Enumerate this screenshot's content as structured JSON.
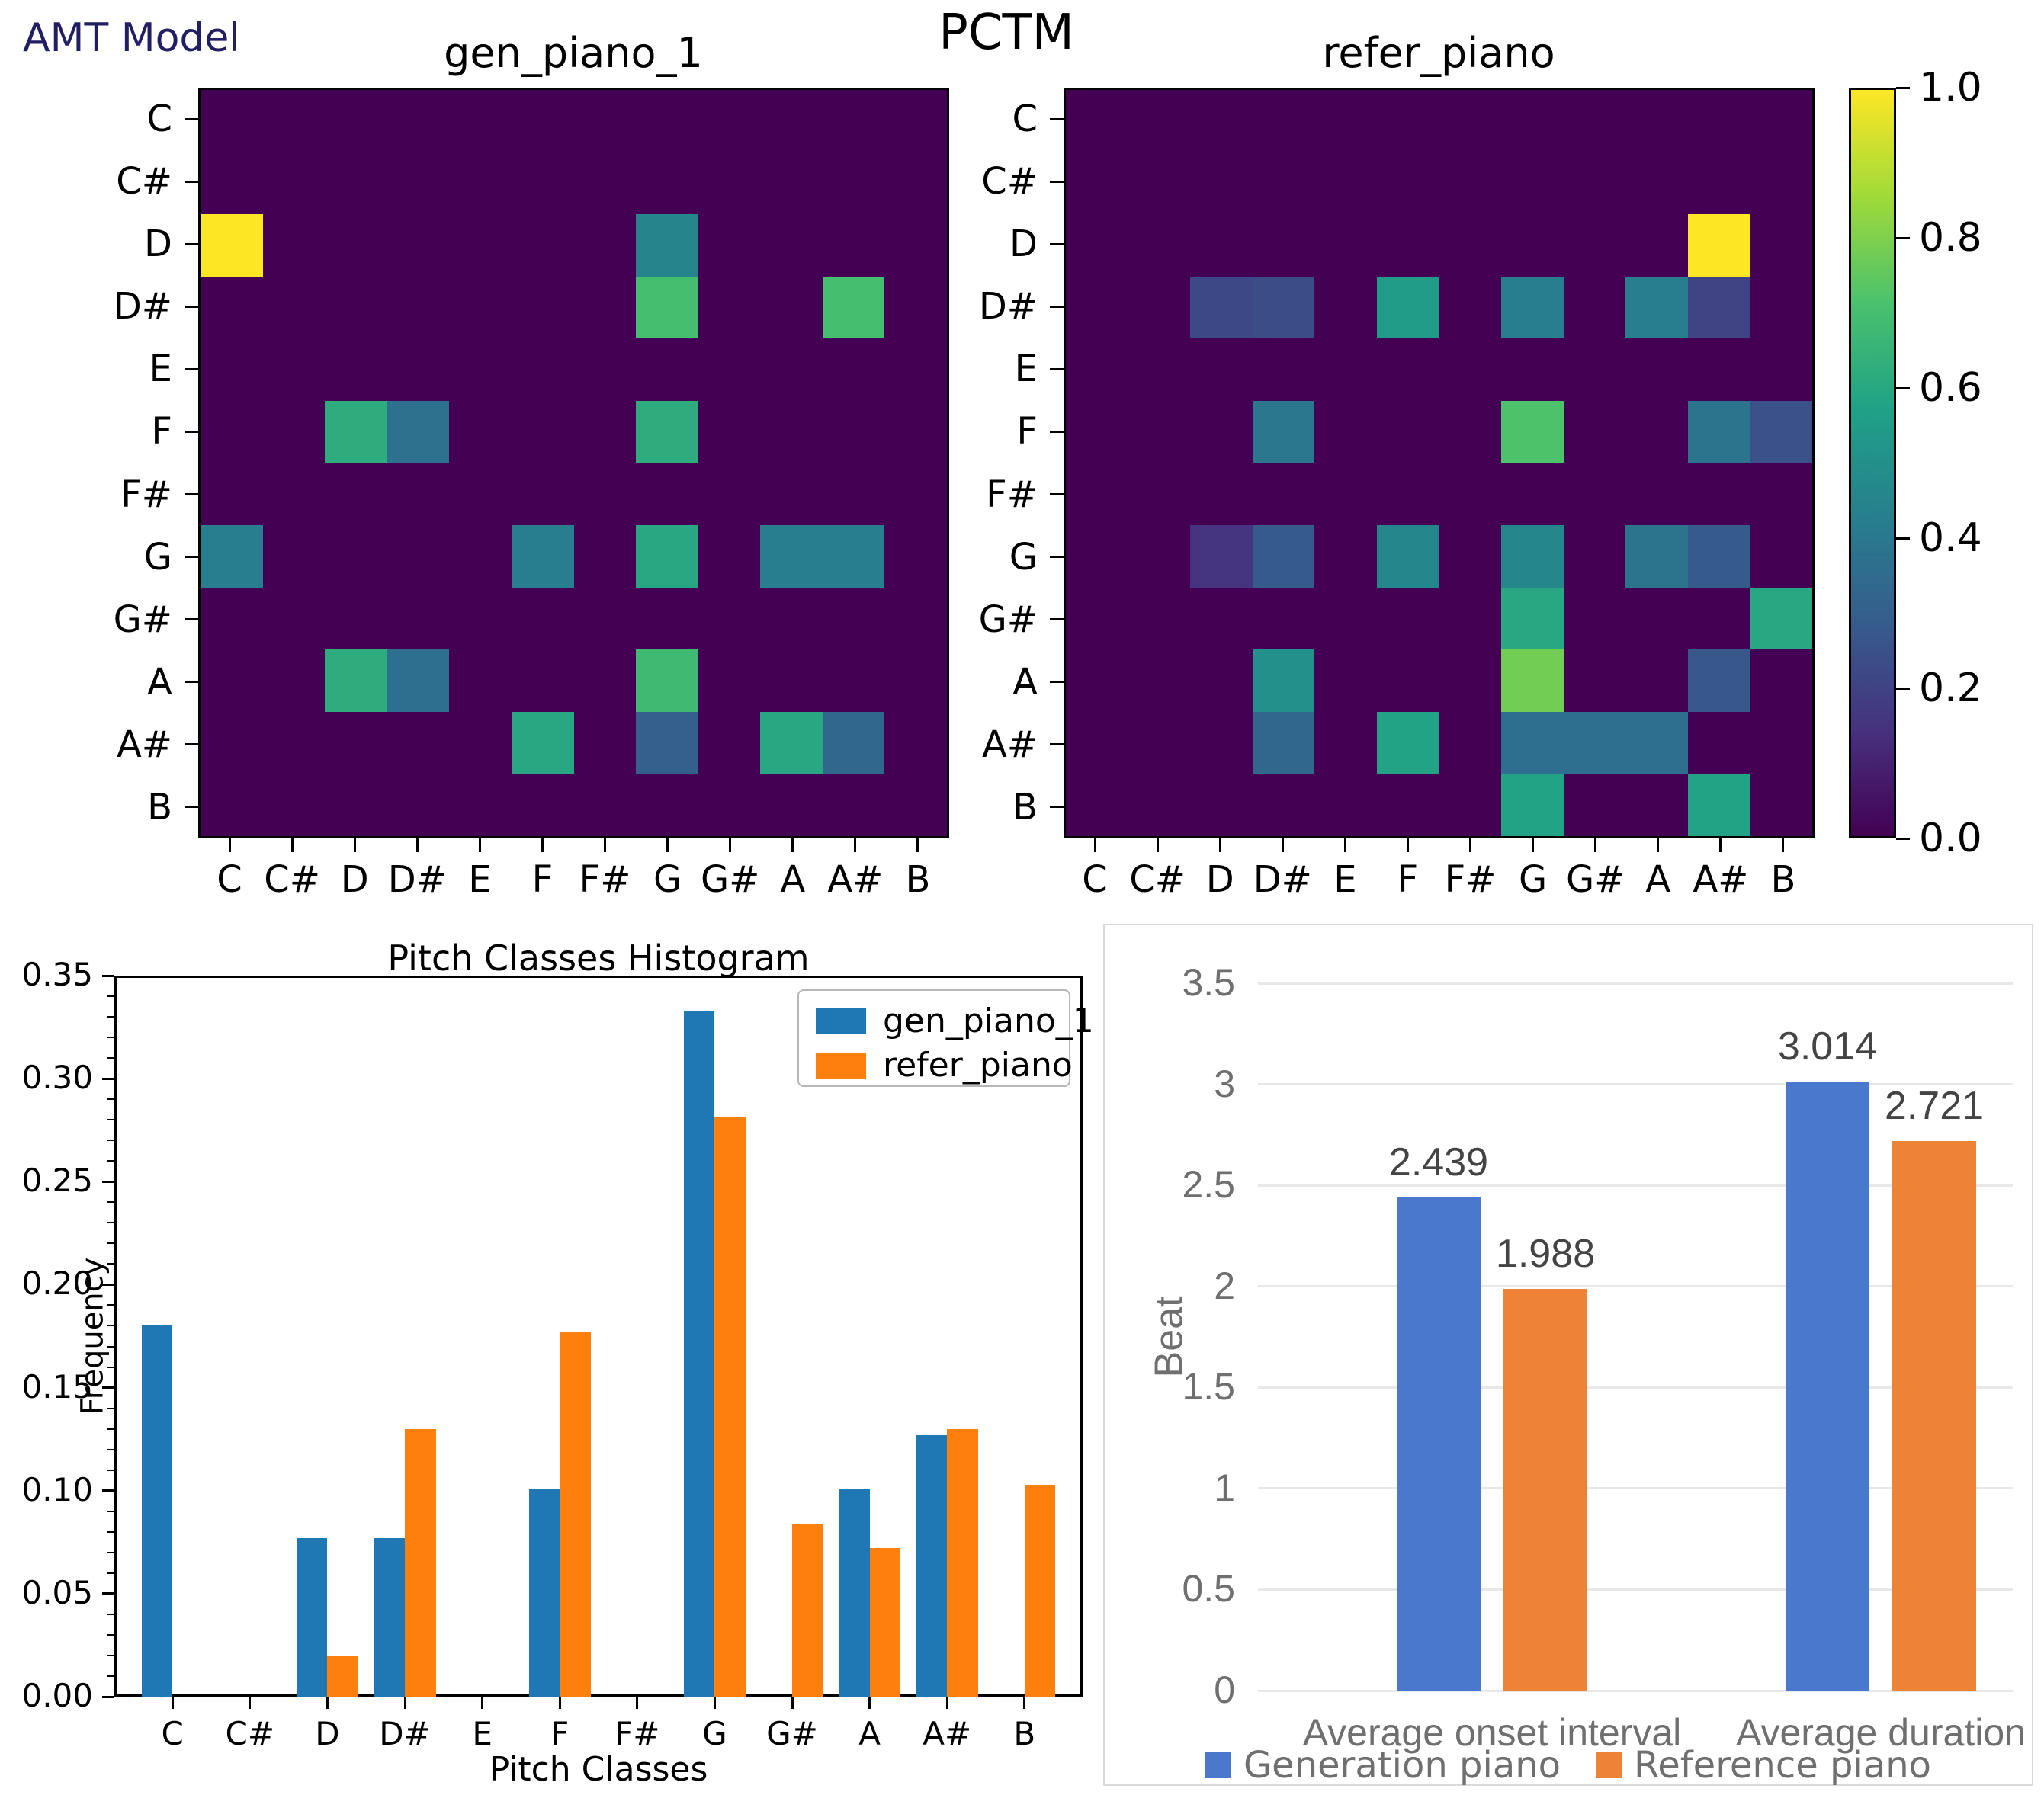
{
  "page": {
    "amt_model_label": "AMT Model",
    "suptitle": "PCTM"
  },
  "colorbar": {
    "colormap": "viridis",
    "ticks": [
      "1.0",
      "0.8",
      "0.6",
      "0.4",
      "0.2",
      "0.0"
    ]
  },
  "chart_data": [
    {
      "id": "pctm_gen",
      "type": "heatmap",
      "title": "gen_piano_1",
      "colormap": "viridis",
      "vmin": 0.0,
      "vmax": 1.0,
      "x_categories": [
        "C",
        "C#",
        "D",
        "D#",
        "E",
        "F",
        "F#",
        "G",
        "G#",
        "A",
        "A#",
        "B"
      ],
      "y_categories": [
        "C",
        "C#",
        "D",
        "D#",
        "E",
        "F",
        "F#",
        "G",
        "G#",
        "A",
        "A#",
        "B"
      ],
      "values": [
        [
          0,
          0,
          0,
          0,
          0,
          0,
          0,
          0,
          0,
          0,
          0,
          0
        ],
        [
          0,
          0,
          0,
          0,
          0,
          0,
          0,
          0,
          0,
          0,
          0,
          0
        ],
        [
          1.0,
          0,
          0,
          0,
          0,
          0,
          0,
          0.45,
          0,
          0,
          0,
          0
        ],
        [
          0,
          0,
          0,
          0,
          0,
          0,
          0,
          0.7,
          0,
          0,
          0.7,
          0
        ],
        [
          0,
          0,
          0,
          0,
          0,
          0,
          0,
          0,
          0,
          0,
          0,
          0
        ],
        [
          0,
          0,
          0.62,
          0.37,
          0,
          0,
          0,
          0.62,
          0,
          0,
          0,
          0
        ],
        [
          0,
          0,
          0,
          0,
          0,
          0,
          0,
          0,
          0,
          0,
          0,
          0
        ],
        [
          0.42,
          0,
          0,
          0,
          0,
          0.42,
          0,
          0.6,
          0,
          0.42,
          0.42,
          0
        ],
        [
          0,
          0,
          0,
          0,
          0,
          0,
          0,
          0,
          0,
          0,
          0,
          0
        ],
        [
          0,
          0,
          0.62,
          0.36,
          0,
          0,
          0,
          0.68,
          0,
          0,
          0,
          0
        ],
        [
          0,
          0,
          0,
          0,
          0,
          0.6,
          0,
          0.3,
          0,
          0.6,
          0.33,
          0
        ],
        [
          0,
          0,
          0,
          0,
          0,
          0,
          0,
          0,
          0,
          0,
          0,
          0
        ]
      ]
    },
    {
      "id": "pctm_refer",
      "type": "heatmap",
      "title": "refer_piano",
      "colormap": "viridis",
      "vmin": 0.0,
      "vmax": 1.0,
      "x_categories": [
        "C",
        "C#",
        "D",
        "D#",
        "E",
        "F",
        "F#",
        "G",
        "G#",
        "A",
        "A#",
        "B"
      ],
      "y_categories": [
        "C",
        "C#",
        "D",
        "D#",
        "E",
        "F",
        "F#",
        "G",
        "G#",
        "A",
        "A#",
        "B"
      ],
      "values": [
        [
          0,
          0,
          0,
          0,
          0,
          0,
          0,
          0,
          0,
          0,
          0,
          0
        ],
        [
          0,
          0,
          0,
          0,
          0,
          0,
          0,
          0,
          0,
          0,
          0,
          0
        ],
        [
          0,
          0,
          0,
          0,
          0,
          0,
          0,
          0,
          0,
          0,
          1.0,
          0
        ],
        [
          0,
          0,
          0.22,
          0.23,
          0,
          0.55,
          0,
          0.42,
          0,
          0.42,
          0.2,
          0
        ],
        [
          0,
          0,
          0,
          0,
          0,
          0,
          0,
          0,
          0,
          0,
          0,
          0
        ],
        [
          0,
          0,
          0,
          0.4,
          0,
          0,
          0,
          0.72,
          0,
          0,
          0.38,
          0.25
        ],
        [
          0,
          0,
          0,
          0,
          0,
          0,
          0,
          0,
          0,
          0,
          0,
          0
        ],
        [
          0,
          0,
          0.15,
          0.28,
          0,
          0.46,
          0,
          0.46,
          0,
          0.38,
          0.28,
          0
        ],
        [
          0,
          0,
          0,
          0,
          0,
          0,
          0,
          0.6,
          0,
          0,
          0,
          0.6
        ],
        [
          0,
          0,
          0,
          0.5,
          0,
          0,
          0,
          0.78,
          0,
          0,
          0.27,
          0
        ],
        [
          0,
          0,
          0,
          0.33,
          0,
          0.58,
          0,
          0.36,
          0.36,
          0.36,
          0,
          0
        ],
        [
          0,
          0,
          0,
          0,
          0,
          0,
          0,
          0.58,
          0,
          0,
          0.58,
          0
        ]
      ]
    },
    {
      "id": "pitch_histogram",
      "type": "bar",
      "title": "Pitch Classes Histogram",
      "xlabel": "Pitch Classes",
      "ylabel": "Frequency",
      "categories": [
        "C",
        "C#",
        "D",
        "D#",
        "E",
        "F",
        "F#",
        "G",
        "G#",
        "A",
        "A#",
        "B"
      ],
      "series": [
        {
          "name": "gen_piano_1",
          "color": "#1f77b4",
          "values": [
            0.18,
            0,
            0.077,
            0.077,
            0,
            0.101,
            0,
            0.333,
            0,
            0.101,
            0.127,
            0
          ]
        },
        {
          "name": "refer_piano",
          "color": "#ff7f0e",
          "values": [
            0,
            0,
            0.02,
            0.13,
            0,
            0.177,
            0,
            0.281,
            0.084,
            0.072,
            0.13,
            0.103
          ]
        }
      ],
      "ylim": [
        0,
        0.35
      ],
      "ytick_labels": [
        "0.00",
        "0.05",
        "0.10",
        "0.15",
        "0.20",
        "0.25",
        "0.30",
        "0.35"
      ],
      "legend_position": "upper right",
      "grid": false
    },
    {
      "id": "beat_chart",
      "type": "bar",
      "title": "",
      "xlabel": "",
      "ylabel": "Beat",
      "categories": [
        "Average onset interval",
        "Average duration"
      ],
      "series": [
        {
          "name": "Generation piano",
          "color": "#4a78cc",
          "values": [
            2.439,
            3.014
          ],
          "labels": [
            "2.439",
            "3.014"
          ]
        },
        {
          "name": "Reference piano",
          "color": "#ee8236",
          "values": [
            1.988,
            2.721
          ],
          "labels": [
            "1.988",
            "2.721"
          ]
        }
      ],
      "ylim": [
        0,
        3.5
      ],
      "ytick_labels": [
        "0",
        "0.5",
        "1",
        "1.5",
        "2",
        "2.5",
        "3",
        "3.5"
      ],
      "legend_position": "bottom",
      "grid": true
    }
  ]
}
